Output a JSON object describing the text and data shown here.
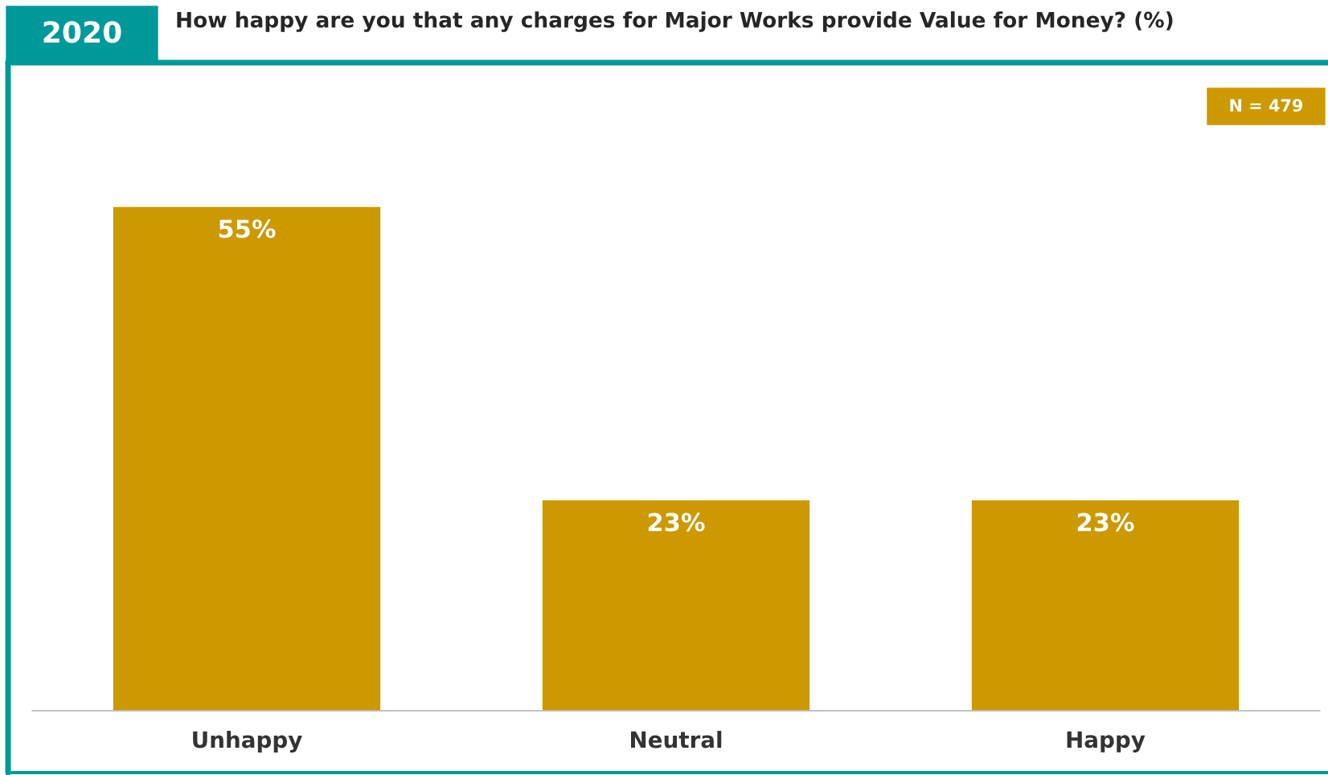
{
  "chart_data": {
    "type": "bar",
    "title": "How happy are you that any charges for Major Works provide Value for Money? (%)",
    "categories": [
      "Unhappy",
      "Neutral",
      "Happy"
    ],
    "values": [
      55,
      23,
      23
    ],
    "value_labels": [
      "55%",
      "23%",
      "23%"
    ],
    "color": "#cc9900",
    "tick_labels": "x",
    "grid": false,
    "legend": false,
    "annotations": [
      "2020",
      "N = 479"
    ]
  }
}
